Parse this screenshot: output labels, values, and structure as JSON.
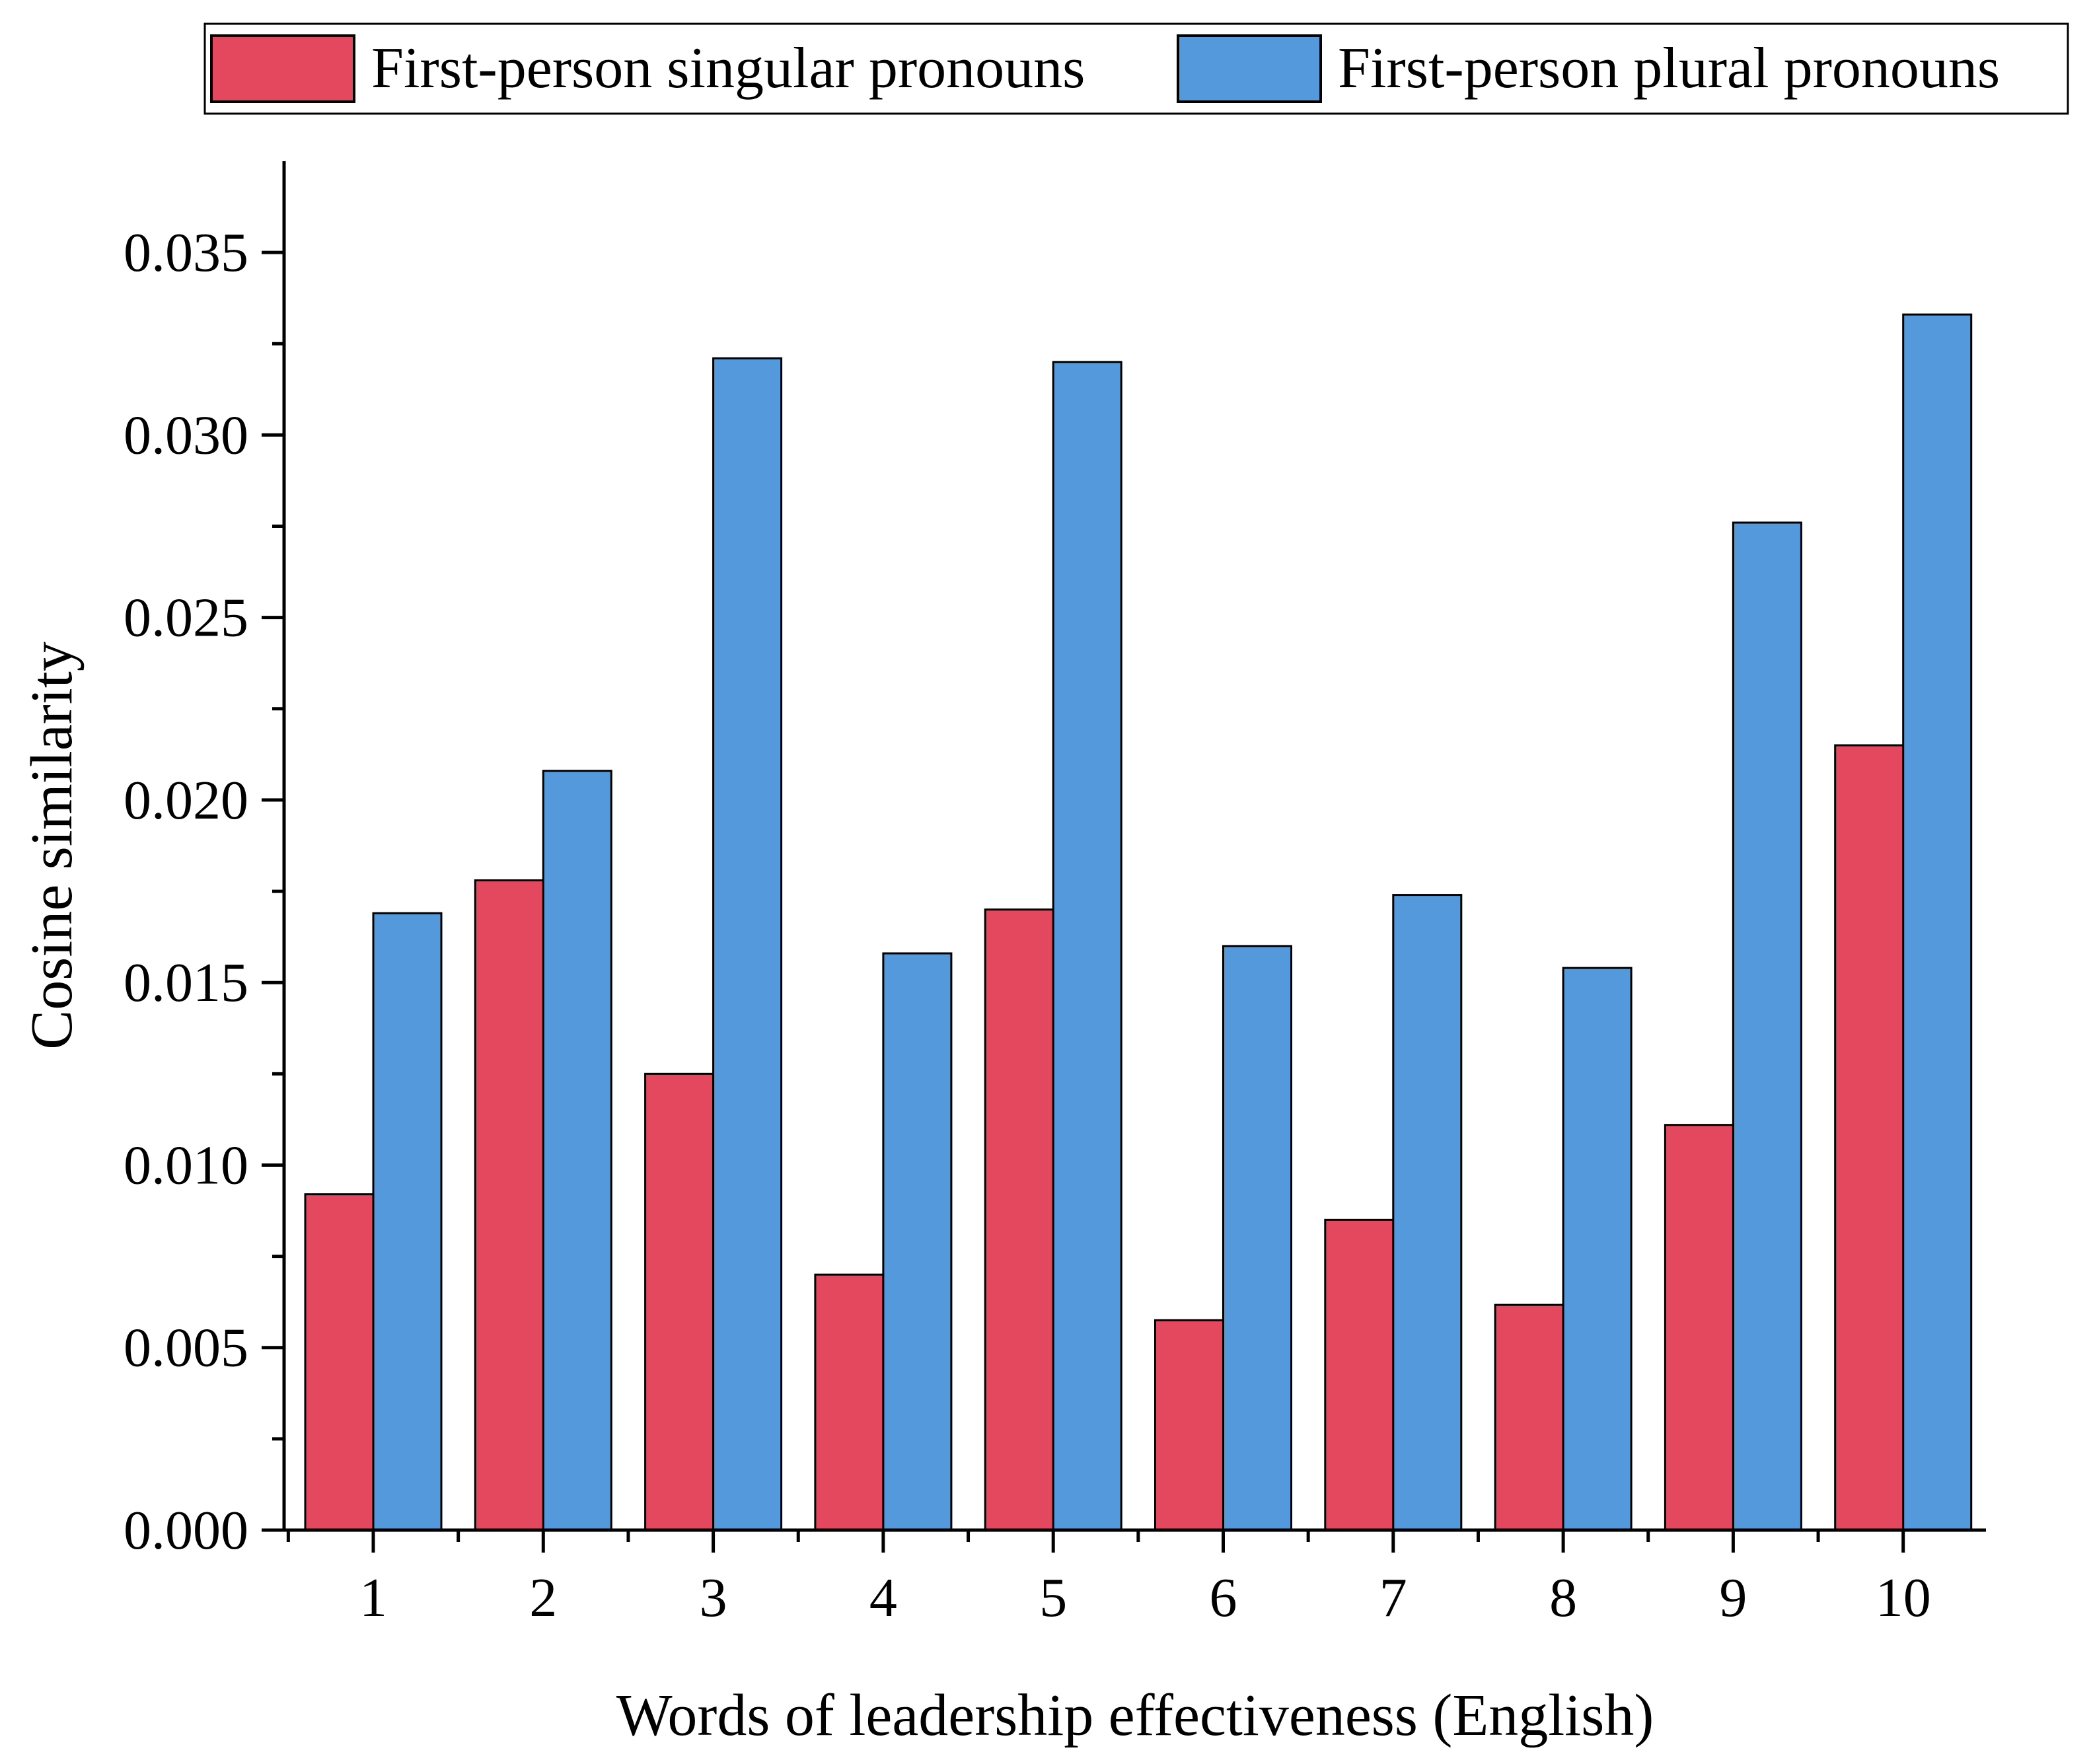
{
  "chart_data": {
    "type": "bar",
    "title": "",
    "xlabel": "Words of leadership effectiveness (English)",
    "ylabel": "Cosine similarity",
    "categories": [
      "1",
      "2",
      "3",
      "4",
      "5",
      "6",
      "7",
      "8",
      "9",
      "10"
    ],
    "series": [
      {
        "name": "First-person singular pronouns",
        "color": "#e3485f",
        "values": [
          0.0092,
          0.0178,
          0.0125,
          0.007,
          0.017,
          0.00575,
          0.0085,
          0.00617,
          0.0111,
          0.0215
        ]
      },
      {
        "name": "First-person plural pronouns",
        "color": "#5599dd",
        "values": [
          0.0169,
          0.0208,
          0.0321,
          0.0158,
          0.032,
          0.016,
          0.0174,
          0.0154,
          0.0276,
          0.0333
        ]
      }
    ],
    "ylim": [
      0,
      0.0375
    ],
    "yticks": [
      0.0,
      0.005,
      0.01,
      0.015,
      0.02,
      0.025,
      0.03,
      0.035
    ],
    "ytick_labels": [
      "0.000",
      "0.005",
      "0.010",
      "0.015",
      "0.020",
      "0.025",
      "0.030",
      "0.035"
    ],
    "grid": false,
    "legend_position": "top"
  }
}
